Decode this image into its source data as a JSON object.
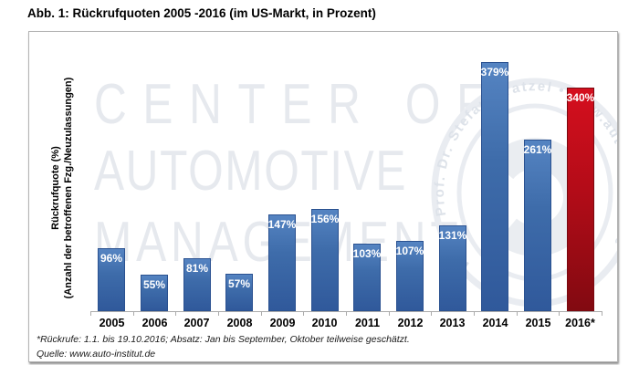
{
  "title": "Abb. 1: Rückrufquoten 2005 -2016 (im US-Markt, in Prozent)",
  "y_axis": {
    "label_line1": "Rückrufquote (%)",
    "label_line2": "(Anzahl der betroffenen Fzg./Neuzulassungen)"
  },
  "watermark": {
    "lines": [
      "CENTER OF",
      "AUTOMOTIVE",
      "MANAGEMENT"
    ],
    "seal_text": "www • Prof. Dr. Stefan Bratzel • www.auto-institut.de"
  },
  "footnotes": {
    "line1": "*Rückrufe: 1.1. bis 19.10.2016; Absatz: Jan bis September, Oktober teilweise geschätzt.",
    "line2": "Quelle: www.auto-institut.de"
  },
  "chart_data": {
    "type": "bar",
    "title": "Abb. 1: Rückrufquoten 2005 -2016 (im US-Markt, in Prozent)",
    "xlabel": "",
    "ylabel": "Rückrufquote (%) (Anzahl der betroffenen Fzg./Neuzulassungen)",
    "categories": [
      "2005",
      "2006",
      "2007",
      "2008",
      "2009",
      "2010",
      "2011",
      "2012",
      "2013",
      "2014",
      "2015",
      "2016*"
    ],
    "values": [
      96,
      55,
      81,
      57,
      147,
      156,
      103,
      107,
      131,
      379,
      261,
      340
    ],
    "data_labels": [
      "96%",
      "55%",
      "81%",
      "57%",
      "147%",
      "156%",
      "103%",
      "107%",
      "131%",
      "379%",
      "261%",
      "340%"
    ],
    "ylim": [
      0,
      425
    ],
    "grid": false,
    "legend": "none",
    "highlight_index": 11,
    "bar_color_default": "#3e6caa",
    "bar_color_highlight": "#b40c18"
  },
  "colors": {
    "bar_blue_border": "#2a5190",
    "bar_red_border": "#7a0910",
    "axis": "#ababab",
    "watermark": "#e6e9ee",
    "frame_border": "#b3b3b3",
    "text": "#000000",
    "bar_label_text": "#ffffff"
  }
}
